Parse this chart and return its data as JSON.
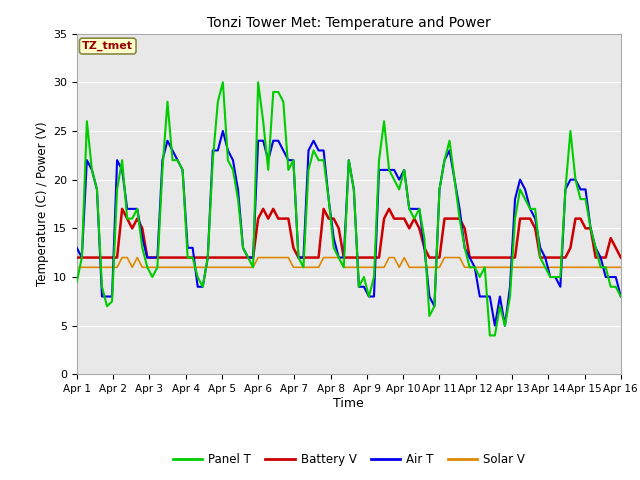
{
  "title": "Tonzi Tower Met: Temperature and Power",
  "xlabel": "Time",
  "ylabel": "Temperature (C) / Power (V)",
  "ylim": [
    0,
    35
  ],
  "yticks": [
    0,
    5,
    10,
    15,
    20,
    25,
    30,
    35
  ],
  "fig_facecolor": "#ffffff",
  "ax_facecolor": "#e8e8e8",
  "annotation_text": "TZ_tmet",
  "annotation_fg": "#990000",
  "annotation_bg": "#ffffcc",
  "annotation_border": "#888844",
  "x_labels": [
    "Apr 1",
    "Apr 2",
    "Apr 3",
    "Apr 4",
    "Apr 5",
    "Apr 6",
    "Apr 7",
    "Apr 8",
    "Apr 9",
    "Apr 10",
    "Apr 11",
    "Apr 12",
    "Apr 13",
    "Apr 14",
    "Apr 15",
    "Apr 16"
  ],
  "legend_labels": [
    "Panel T",
    "Battery V",
    "Air T",
    "Solar V"
  ],
  "legend_colors": [
    "#00cc00",
    "#cc0000",
    "#0000ee",
    "#dd8800"
  ],
  "panel_t": [
    9.5,
    12,
    26,
    21,
    19,
    9,
    7,
    7.5,
    19,
    22,
    16,
    16,
    17,
    13,
    11,
    10,
    11,
    21,
    28,
    22,
    22,
    21,
    12,
    12,
    10,
    9,
    12,
    22,
    28,
    30,
    22,
    21,
    18,
    13,
    12,
    11,
    30,
    26,
    21,
    29,
    29,
    28,
    21,
    22,
    12,
    11,
    21,
    23,
    22,
    22,
    18,
    13,
    12,
    11,
    22,
    19,
    9,
    10,
    8,
    10,
    22,
    26,
    21,
    20,
    19,
    21,
    17,
    16,
    17,
    14,
    6,
    7,
    19,
    22,
    24,
    20,
    16,
    13,
    11,
    11,
    10,
    11,
    4,
    4,
    7,
    5,
    8,
    16,
    19,
    18,
    17,
    17,
    12,
    11,
    10,
    10,
    10,
    19,
    25,
    20,
    18,
    18,
    15,
    13,
    11,
    11,
    9,
    9,
    8
  ],
  "battery_v": [
    12,
    12,
    12,
    12,
    12,
    12,
    12,
    12,
    12,
    17,
    16,
    15,
    16,
    15,
    12,
    12,
    12,
    12,
    12,
    12,
    12,
    12,
    12,
    12,
    12,
    12,
    12,
    12,
    12,
    12,
    12,
    12,
    12,
    12,
    12,
    12,
    16,
    17,
    16,
    17,
    16,
    16,
    16,
    13,
    12,
    12,
    12,
    12,
    12,
    17,
    16,
    16,
    15,
    12,
    12,
    12,
    12,
    12,
    12,
    12,
    12,
    16,
    17,
    16,
    16,
    16,
    15,
    16,
    15,
    13,
    12,
    12,
    12,
    16,
    16,
    16,
    16,
    15,
    12,
    12,
    12,
    12,
    12,
    12,
    12,
    12,
    12,
    12,
    16,
    16,
    16,
    15,
    12,
    12,
    12,
    12,
    12,
    12,
    13,
    16,
    16,
    15,
    15,
    12,
    12,
    12,
    14,
    13,
    12
  ],
  "air_t": [
    13,
    12,
    22,
    21,
    19,
    8,
    8,
    8,
    22,
    21,
    17,
    17,
    17,
    14,
    12,
    12,
    12,
    22,
    24,
    23,
    22,
    21,
    13,
    13,
    9,
    9,
    12,
    23,
    23,
    25,
    23,
    22,
    19,
    13,
    12,
    12,
    24,
    24,
    22,
    24,
    24,
    23,
    22,
    22,
    12,
    12,
    23,
    24,
    23,
    23,
    18,
    14,
    12,
    12,
    22,
    19,
    9,
    9,
    8,
    8,
    21,
    21,
    21,
    21,
    20,
    21,
    17,
    17,
    17,
    13,
    8,
    7,
    19,
    22,
    23,
    20,
    17,
    13,
    12,
    11,
    8,
    8,
    8,
    5,
    8,
    5,
    9,
    18,
    20,
    19,
    17,
    16,
    13,
    12,
    10,
    10,
    9,
    19,
    20,
    20,
    19,
    19,
    15,
    13,
    12,
    10,
    10,
    10,
    8
  ],
  "solar_v": [
    11,
    11,
    11,
    11,
    11,
    11,
    11,
    11,
    11,
    12,
    12,
    11,
    12,
    11,
    11,
    11,
    11,
    11,
    11,
    11,
    11,
    11,
    11,
    11,
    11,
    11,
    11,
    11,
    11,
    11,
    11,
    11,
    11,
    11,
    11,
    11,
    12,
    12,
    12,
    12,
    12,
    12,
    12,
    11,
    11,
    11,
    11,
    11,
    11,
    12,
    12,
    12,
    12,
    11,
    11,
    11,
    11,
    11,
    11,
    11,
    11,
    11,
    12,
    12,
    11,
    12,
    11,
    11,
    11,
    11,
    11,
    11,
    11,
    12,
    12,
    12,
    12,
    11,
    11,
    11,
    11,
    11,
    11,
    11,
    11,
    11,
    11,
    11,
    11,
    11,
    11,
    11,
    11,
    11,
    11,
    11,
    11,
    11,
    11,
    11,
    11,
    11,
    11,
    11,
    11,
    11,
    11,
    11,
    11
  ]
}
